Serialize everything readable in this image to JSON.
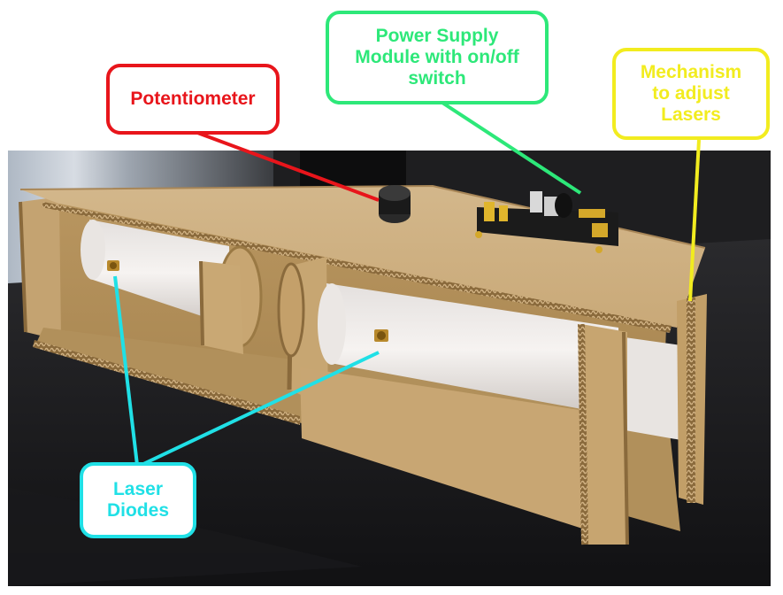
{
  "photo": {
    "subject": "cardboard-box-laser-device"
  },
  "callouts": {
    "potentiometer": {
      "label": "Potentiometer",
      "color": "#e8151b"
    },
    "power_supply": {
      "label": "Power Supply\nModule with on/off\nswitch",
      "color": "#2de879"
    },
    "mechanism": {
      "label": "Mechanism\nto adjust\nLasers",
      "color": "#f2ec1f"
    },
    "laser_diodes": {
      "label": "Laser\nDiodes",
      "color": "#20e0e6"
    }
  }
}
